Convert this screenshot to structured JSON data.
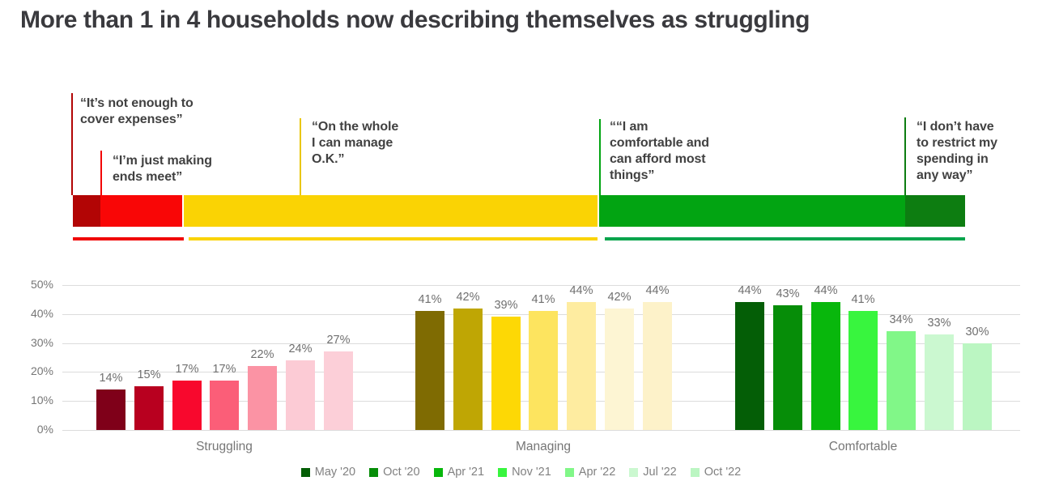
{
  "title": "More than 1 in 4 households now describing themselves as struggling",
  "banner": {
    "segments": [
      {
        "name": "struggling-dark",
        "color": "#b20505"
      },
      {
        "name": "struggling",
        "color": "#f90606"
      },
      {
        "name": "managing",
        "color": "#fad304"
      },
      {
        "name": "comfortable",
        "color": "#02a412"
      },
      {
        "name": "comfortable-dark",
        "color": "#0d7d11"
      }
    ],
    "underlines": [
      {
        "name": "struggling-underline",
        "color": "#f00505"
      },
      {
        "name": "managing-underline",
        "color": "#fad304"
      },
      {
        "name": "comfortable-underline",
        "color": "#08a44c"
      }
    ],
    "quotes": [
      {
        "text": "“It’s not enough to\ncover expenses”",
        "line_color": "#b20505"
      },
      {
        "text": "“I’m just making\nends meet”",
        "line_color": "#f20505"
      },
      {
        "text": "“On the whole\nI can manage\nO.K.”",
        "line_color": "#e9c603"
      },
      {
        "text": "““I am\ncomfortable and\ncan afford most\nthings”",
        "line_color": "#02a412"
      },
      {
        "text": "“I don’t have\nto restrict my\nspending in\nany way”",
        "line_color": "#0d7d11"
      }
    ]
  },
  "chart_data": {
    "type": "bar",
    "categories": [
      "Struggling",
      "Managing",
      "Comfortable"
    ],
    "series": [
      {
        "name": "May '20",
        "values": [
          14,
          41,
          44
        ]
      },
      {
        "name": "Oct '20",
        "values": [
          15,
          42,
          43
        ]
      },
      {
        "name": "Apr '21",
        "values": [
          17,
          39,
          44
        ]
      },
      {
        "name": "Nov '21",
        "values": [
          17,
          41,
          41
        ]
      },
      {
        "name": "Apr '22",
        "values": [
          22,
          44,
          34
        ]
      },
      {
        "name": "Jul '22",
        "values": [
          24,
          42,
          33
        ]
      },
      {
        "name": "Oct '22",
        "values": [
          27,
          44,
          30
        ]
      }
    ],
    "value_suffix": "%",
    "ylim": [
      0,
      50
    ],
    "yticks": [
      "0%",
      "10%",
      "20%",
      "30%",
      "40%",
      "50%"
    ],
    "grid": true,
    "legend_position": "bottom",
    "palettes": [
      [
        "#7f0019",
        "#b8001f",
        "#f8082d",
        "#fb5e78",
        "#fb93a4",
        "#fccbd5",
        "#fccfd8"
      ],
      [
        "#7f6b02",
        "#bfa604",
        "#fdd805",
        "#fde45f",
        "#feeca0",
        "#fdf5d3",
        "#fdf2c9"
      ],
      [
        "#045e06",
        "#068d08",
        "#08b70c",
        "#38f53e",
        "#81f788",
        "#cbf8d0",
        "#bbf6c2"
      ]
    ],
    "legend_colors": [
      "#045e06",
      "#068d08",
      "#08b70c",
      "#38f53e",
      "#81f788",
      "#cbf8d0",
      "#bbf6c2"
    ]
  }
}
